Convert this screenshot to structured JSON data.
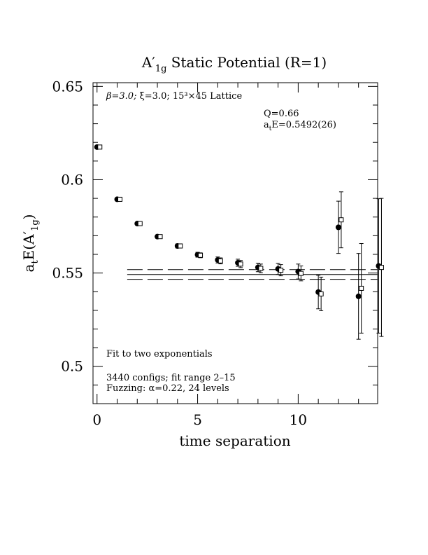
{
  "chart_data": {
    "type": "scatter",
    "title_main": "A′",
    "title_sub": "1g",
    "title_rest": " Static Potential (R=1)",
    "xlabel": "time separation",
    "ylabel_main": "a",
    "ylabel_t": "t",
    "ylabel_mid": "E(A′",
    "ylabel_sub": "1g",
    "ylabel_end": ")",
    "xlim": [
      -0.2,
      13.95
    ],
    "ylim": [
      0.48,
      0.652
    ],
    "x_ticks": [
      0,
      5,
      10
    ],
    "x_tick_labels": [
      "0",
      "5",
      "10"
    ],
    "y_ticks": [
      0.5,
      0.55,
      0.6,
      0.65
    ],
    "y_tick_labels": [
      "0.5",
      "0.55",
      "0.6",
      "0.65"
    ],
    "annotations": {
      "lattice_beta": "β=3.0; ",
      "lattice_xi": "ξ=3.0; 15³×45 Lattice",
      "q": "Q=0.66",
      "energy_a": "a",
      "energy_t": "t",
      "energy_rest": "E=0.5492(26)",
      "fit_type": "Fit to two exponentials",
      "configs": "3440 configs; fit range 2–15",
      "fuzzing": "Fuzzing: α=0.22, 24 levels"
    },
    "fit": {
      "value": 0.5492,
      "error": 0.0026,
      "x_range": [
        1.5,
        13.95
      ]
    },
    "series": [
      {
        "marker": "filled-circle",
        "x": [
          0,
          1,
          2,
          3,
          4,
          5,
          6,
          7,
          8,
          9,
          10,
          11,
          12,
          13,
          14
        ],
        "y": [
          0.6175,
          0.5895,
          0.5765,
          0.5695,
          0.5645,
          0.5598,
          0.557,
          0.5555,
          0.553,
          0.5522,
          0.5508,
          0.5398,
          0.5745,
          0.5375,
          0.5538
        ],
        "err": [
          0.0005,
          0.0006,
          0.0008,
          0.0009,
          0.0011,
          0.0013,
          0.0016,
          0.0019,
          0.0023,
          0.003,
          0.004,
          0.009,
          0.014,
          0.023,
          0.036
        ]
      },
      {
        "marker": "open-square",
        "x": [
          0,
          1,
          2,
          3,
          4,
          5,
          6,
          7,
          8,
          9,
          10,
          11,
          12,
          13,
          14
        ],
        "y": [
          0.6175,
          0.5895,
          0.5765,
          0.5695,
          0.5645,
          0.5595,
          0.5565,
          0.5548,
          0.5525,
          0.5515,
          0.5498,
          0.5388,
          0.5785,
          0.5418,
          0.553
        ],
        "err": [
          0.0005,
          0.0006,
          0.0008,
          0.0009,
          0.0011,
          0.0013,
          0.0016,
          0.0019,
          0.0023,
          0.003,
          0.004,
          0.009,
          0.015,
          0.024,
          0.037
        ]
      }
    ]
  }
}
